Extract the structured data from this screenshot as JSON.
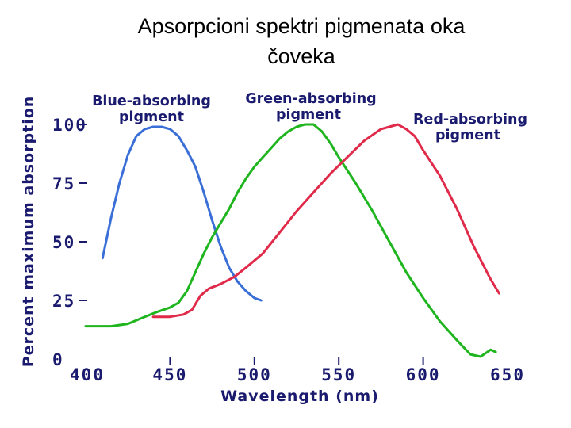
{
  "slide": {
    "title_line1": "Apsorpcioni spektri pigmenata oka",
    "title_line2": "čoveka"
  },
  "chart_data": {
    "type": "line",
    "title": "",
    "xlabel": "Wavelength (nm)",
    "ylabel": "Percent maximum absorption",
    "xlim": [
      400,
      650
    ],
    "ylim": [
      0,
      100
    ],
    "x_ticks": [
      400,
      450,
      500,
      550,
      600,
      650
    ],
    "y_ticks": [
      0,
      25,
      50,
      75,
      100
    ],
    "grid": false,
    "series": [
      {
        "name": "Blue-absorbing pigment",
        "label_lines": [
          "Blue-absorbing",
          "pigment"
        ],
        "color": "#3a6fd8",
        "points": [
          [
            410,
            43
          ],
          [
            415,
            60
          ],
          [
            420,
            75
          ],
          [
            425,
            87
          ],
          [
            430,
            95
          ],
          [
            435,
            98
          ],
          [
            440,
            99
          ],
          [
            445,
            99
          ],
          [
            450,
            98
          ],
          [
            455,
            95
          ],
          [
            460,
            89
          ],
          [
            465,
            82
          ],
          [
            470,
            71
          ],
          [
            475,
            59
          ],
          [
            480,
            48
          ],
          [
            485,
            39
          ],
          [
            490,
            33
          ],
          [
            495,
            29
          ],
          [
            500,
            26
          ],
          [
            504,
            25
          ]
        ]
      },
      {
        "name": "Green-absorbing pigment",
        "label_lines": [
          "Green-absorbing",
          "pigment"
        ],
        "color": "#1fb51f",
        "points": [
          [
            400,
            14
          ],
          [
            415,
            14
          ],
          [
            425,
            15
          ],
          [
            435,
            18
          ],
          [
            442,
            20
          ],
          [
            450,
            22
          ],
          [
            455,
            24
          ],
          [
            460,
            29
          ],
          [
            465,
            37
          ],
          [
            470,
            45
          ],
          [
            475,
            52
          ],
          [
            480,
            58
          ],
          [
            485,
            64
          ],
          [
            490,
            71
          ],
          [
            495,
            77
          ],
          [
            500,
            82
          ],
          [
            505,
            86
          ],
          [
            510,
            90
          ],
          [
            515,
            94
          ],
          [
            520,
            97
          ],
          [
            525,
            99
          ],
          [
            530,
            100
          ],
          [
            535,
            100
          ],
          [
            540,
            97
          ],
          [
            545,
            92
          ],
          [
            550,
            86
          ],
          [
            560,
            75
          ],
          [
            570,
            63
          ],
          [
            580,
            50
          ],
          [
            590,
            37
          ],
          [
            600,
            26
          ],
          [
            610,
            16
          ],
          [
            620,
            8
          ],
          [
            628,
            2
          ],
          [
            634,
            1
          ],
          [
            640,
            4
          ],
          [
            643,
            3
          ]
        ]
      },
      {
        "name": "Red-absorbing pigment",
        "label_lines": [
          "Red-absorbing",
          "pigment"
        ],
        "color": "#e02a4a",
        "points": [
          [
            440,
            18
          ],
          [
            450,
            18
          ],
          [
            458,
            19
          ],
          [
            463,
            21
          ],
          [
            468,
            27
          ],
          [
            473,
            30
          ],
          [
            480,
            32
          ],
          [
            488,
            35
          ],
          [
            495,
            39
          ],
          [
            505,
            45
          ],
          [
            515,
            54
          ],
          [
            525,
            63
          ],
          [
            535,
            71
          ],
          [
            545,
            79
          ],
          [
            555,
            86
          ],
          [
            565,
            93
          ],
          [
            575,
            98
          ],
          [
            580,
            99
          ],
          [
            585,
            100
          ],
          [
            590,
            98
          ],
          [
            595,
            95
          ],
          [
            600,
            89
          ],
          [
            610,
            78
          ],
          [
            620,
            64
          ],
          [
            630,
            48
          ],
          [
            640,
            34
          ],
          [
            645,
            28
          ]
        ]
      }
    ]
  }
}
